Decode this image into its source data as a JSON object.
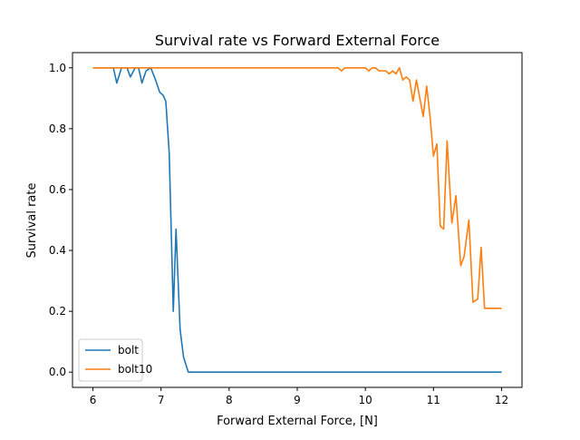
{
  "chart_data": {
    "type": "line",
    "title": "Survival rate vs Forward External Force",
    "xlabel": "Forward External Force, [N]",
    "ylabel": "Survival rate",
    "xlim": [
      5.7,
      12.3
    ],
    "ylim": [
      -0.05,
      1.05
    ],
    "xticks": [
      6,
      7,
      8,
      9,
      10,
      11,
      12
    ],
    "xtick_labels": [
      "6",
      "7",
      "8",
      "9",
      "10",
      "11",
      "12"
    ],
    "yticks": [
      0.0,
      0.2,
      0.4,
      0.6,
      0.8,
      1.0
    ],
    "ytick_labels": [
      "0.0",
      "0.2",
      "0.4",
      "0.6",
      "0.8",
      "1.0"
    ],
    "grid": false,
    "legend_position": "lower-left",
    "series": [
      {
        "name": "bolt",
        "color": "#1f77b4",
        "x": [
          6.0,
          6.3,
          6.35,
          6.42,
          6.5,
          6.55,
          6.62,
          6.67,
          6.72,
          6.78,
          6.85,
          6.92,
          6.98,
          7.03,
          7.07,
          7.12,
          7.18,
          7.22,
          7.28,
          7.33,
          7.4,
          12.0
        ],
        "y": [
          1.0,
          1.0,
          0.95,
          1.0,
          1.0,
          0.97,
          1.0,
          1.0,
          0.95,
          0.99,
          1.0,
          0.96,
          0.92,
          0.91,
          0.89,
          0.72,
          0.2,
          0.47,
          0.14,
          0.05,
          0.0,
          0.0
        ]
      },
      {
        "name": "bolt10",
        "color": "#ff7f0e",
        "x": [
          6.0,
          9.6,
          9.65,
          9.7,
          10.0,
          10.05,
          10.1,
          10.15,
          10.2,
          10.3,
          10.35,
          10.4,
          10.45,
          10.5,
          10.55,
          10.6,
          10.65,
          10.7,
          10.75,
          10.8,
          10.85,
          10.9,
          10.95,
          11.0,
          11.05,
          11.1,
          11.15,
          11.2,
          11.27,
          11.33,
          11.4,
          11.45,
          11.52,
          11.58,
          11.65,
          11.7,
          11.75,
          11.8,
          11.85,
          11.9,
          11.95,
          12.0
        ],
        "y": [
          1.0,
          1.0,
          0.99,
          1.0,
          1.0,
          0.99,
          1.0,
          1.0,
          0.99,
          0.99,
          0.98,
          0.99,
          0.98,
          1.0,
          0.96,
          0.97,
          0.96,
          0.89,
          0.96,
          0.9,
          0.84,
          0.94,
          0.84,
          0.71,
          0.75,
          0.48,
          0.47,
          0.76,
          0.49,
          0.58,
          0.35,
          0.38,
          0.5,
          0.23,
          0.24,
          0.41,
          0.21,
          0.21,
          0.21,
          0.21,
          0.21,
          0.21
        ]
      }
    ]
  }
}
